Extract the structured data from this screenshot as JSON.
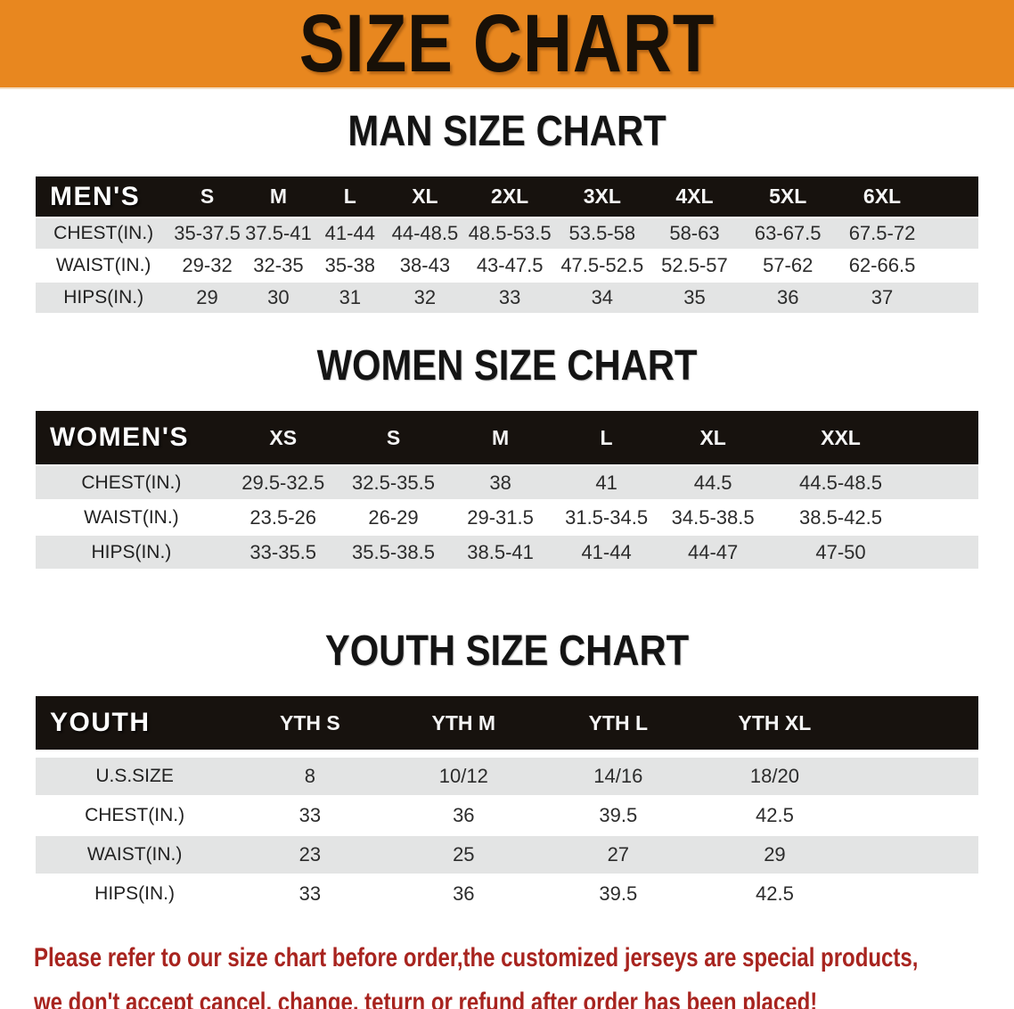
{
  "banner": {
    "title": "SIZE CHART"
  },
  "colors": {
    "banner_orange": "#e8871f",
    "title_black": "#181007",
    "heading_black": "#141414",
    "table_header_black": "#17120e",
    "row_gray": "#e3e4e4",
    "disclaimer_red": "#a8241f"
  },
  "men": {
    "heading": "MAN SIZE CHART",
    "header": [
      "MEN'S",
      "S",
      "M",
      "L",
      "XL",
      "2XL",
      "3XL",
      "4XL",
      "5XL",
      "6XL"
    ],
    "rows": [
      [
        "CHEST(IN.)",
        "35-37.5",
        "37.5-41",
        "41-44",
        "44-48.5",
        "48.5-53.5",
        "53.5-58",
        "58-63",
        "63-67.5",
        "67.5-72"
      ],
      [
        "WAIST(IN.)",
        "29-32",
        "32-35",
        "35-38",
        "38-43",
        "43-47.5",
        "47.5-52.5",
        "52.5-57",
        "57-62",
        "62-66.5"
      ],
      [
        "HIPS(IN.)",
        "29",
        "30",
        "31",
        "32",
        "33",
        "34",
        "35",
        "36",
        "37"
      ]
    ]
  },
  "women": {
    "heading": "WOMEN SIZE CHART",
    "header": [
      "WOMEN'S",
      "XS",
      "S",
      "M",
      "L",
      "XL",
      "XXL"
    ],
    "rows": [
      [
        "CHEST(IN.)",
        "29.5-32.5",
        "32.5-35.5",
        "38",
        "41",
        "44.5",
        "44.5-48.5"
      ],
      [
        "WAIST(IN.)",
        "23.5-26",
        "26-29",
        "29-31.5",
        "31.5-34.5",
        "34.5-38.5",
        "38.5-42.5"
      ],
      [
        "HIPS(IN.)",
        "33-35.5",
        "35.5-38.5",
        "38.5-41",
        "41-44",
        "44-47",
        "47-50"
      ]
    ]
  },
  "youth": {
    "heading": "YOUTH SIZE CHART",
    "header": [
      "YOUTH",
      "YTH S",
      "YTH M",
      "YTH L",
      "YTH XL"
    ],
    "rows": [
      [
        "U.S.SIZE",
        "8",
        "10/12",
        "14/16",
        "18/20"
      ],
      [
        "CHEST(IN.)",
        "33",
        "36",
        "39.5",
        "42.5"
      ],
      [
        "WAIST(IN.)",
        "23",
        "25",
        "27",
        "29"
      ],
      [
        "HIPS(IN.)",
        "33",
        "36",
        "39.5",
        "42.5"
      ]
    ]
  },
  "disclaimer": {
    "line1": "Please refer to our size chart before order,the customized jerseys are special products,",
    "line2": "we don't accept cancel, change, teturn or refund after order has been placed!"
  }
}
